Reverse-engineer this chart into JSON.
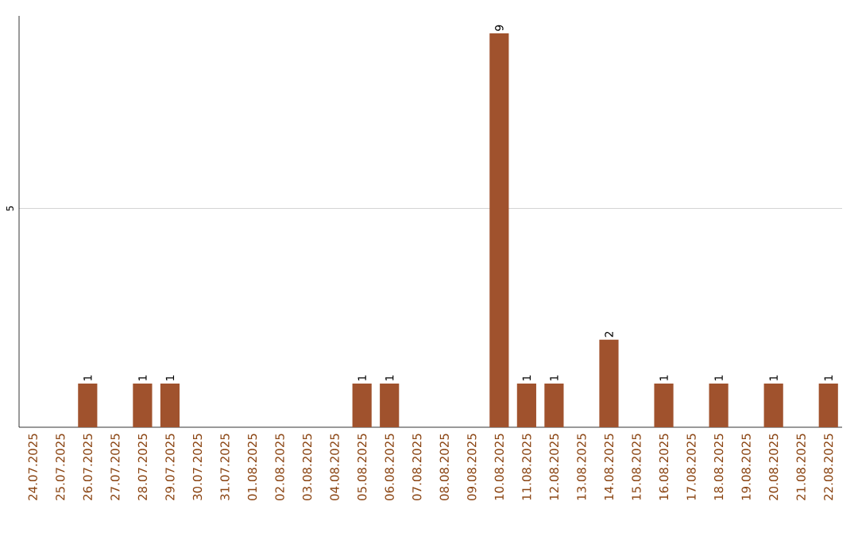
{
  "chart_data": {
    "type": "bar",
    "categories": [
      "24.07.2025",
      "25.07.2025",
      "26.07.2025",
      "27.07.2025",
      "28.07.2025",
      "29.07.2025",
      "30.07.2025",
      "31.07.2025",
      "01.08.2025",
      "02.08.2025",
      "03.08.2025",
      "04.08.2025",
      "05.08.2025",
      "06.08.2025",
      "07.08.2025",
      "08.08.2025",
      "09.08.2025",
      "10.08.2025",
      "11.08.2025",
      "12.08.2025",
      "13.08.2025",
      "14.08.2025",
      "15.08.2025",
      "16.08.2025",
      "17.08.2025",
      "18.08.2025",
      "19.08.2025",
      "20.08.2025",
      "21.08.2025",
      "22.08.2025"
    ],
    "values": [
      0,
      0,
      1,
      0,
      1,
      1,
      0,
      0,
      0,
      0,
      0,
      0,
      1,
      1,
      0,
      0,
      0,
      9,
      1,
      1,
      0,
      2,
      0,
      1,
      0,
      1,
      0,
      1,
      0,
      1
    ],
    "value_labels": [
      null,
      null,
      "1",
      null,
      "1",
      "1",
      null,
      null,
      null,
      null,
      null,
      null,
      "1",
      "1",
      null,
      null,
      null,
      "9",
      "1",
      "1",
      null,
      "2",
      null,
      "1",
      null,
      "1",
      null,
      "1",
      null,
      "1"
    ],
    "color": "#a0522d",
    "ylim": [
      0,
      9.4
    ],
    "yticks": [
      5
    ],
    "grid": "y"
  }
}
